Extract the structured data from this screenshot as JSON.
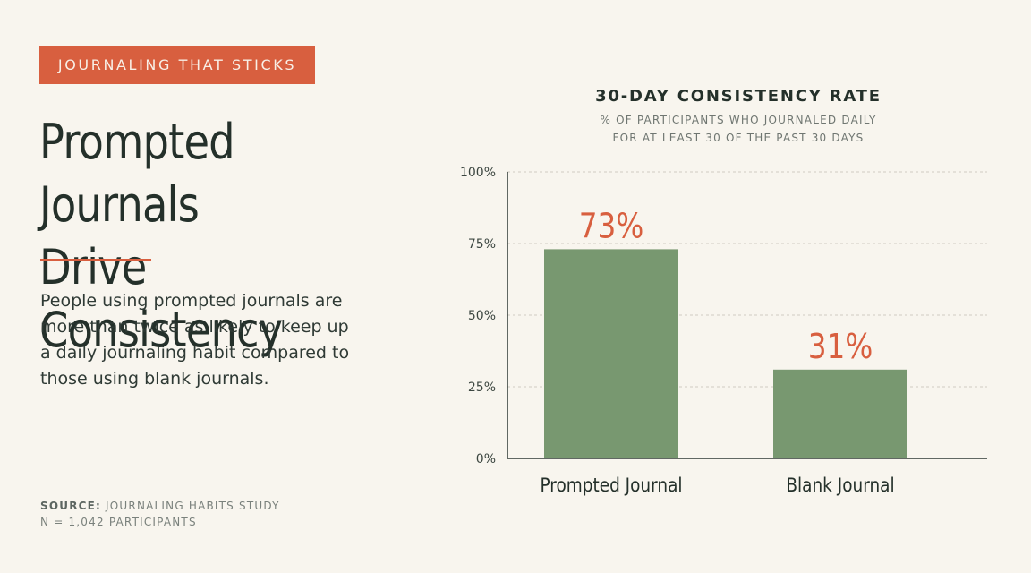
{
  "badge": "JOURNALING THAT STICKS",
  "headline": {
    "line1": "Prompted Journals",
    "line2": "Drive Consistency"
  },
  "lede": "People using prompted journals are more than twice as likely to keep up a daily journaling habit compared to those using blank journals.",
  "source": {
    "label": "SOURCE:",
    "text": "JOURNALING HABITS STUDY",
    "sample": "N = 1,042 PARTICIPANTS"
  },
  "colors": {
    "background": "#f8f5ee",
    "accent": "#d85f3f",
    "bar": "#789870",
    "text": "#24302a"
  },
  "chart_data": {
    "type": "bar",
    "title": "30-DAY CONSISTENCY RATE",
    "subtitle_line1": "% OF PARTICIPANTS WHO JOURNALED DAILY",
    "subtitle_line2": "FOR AT LEAST 30 OF THE PAST 30 DAYS",
    "categories": [
      "Prompted Journal",
      "Blank Journal"
    ],
    "values": [
      73,
      31
    ],
    "value_labels": [
      "73%",
      "31%"
    ],
    "xlabel": "",
    "ylabel": "",
    "ylim": [
      0,
      100
    ],
    "yticks": [
      0,
      25,
      50,
      75,
      100
    ],
    "ytick_labels": [
      "0%",
      "25%",
      "50%",
      "75%",
      "100%"
    ],
    "grid": true,
    "legend": "none"
  }
}
